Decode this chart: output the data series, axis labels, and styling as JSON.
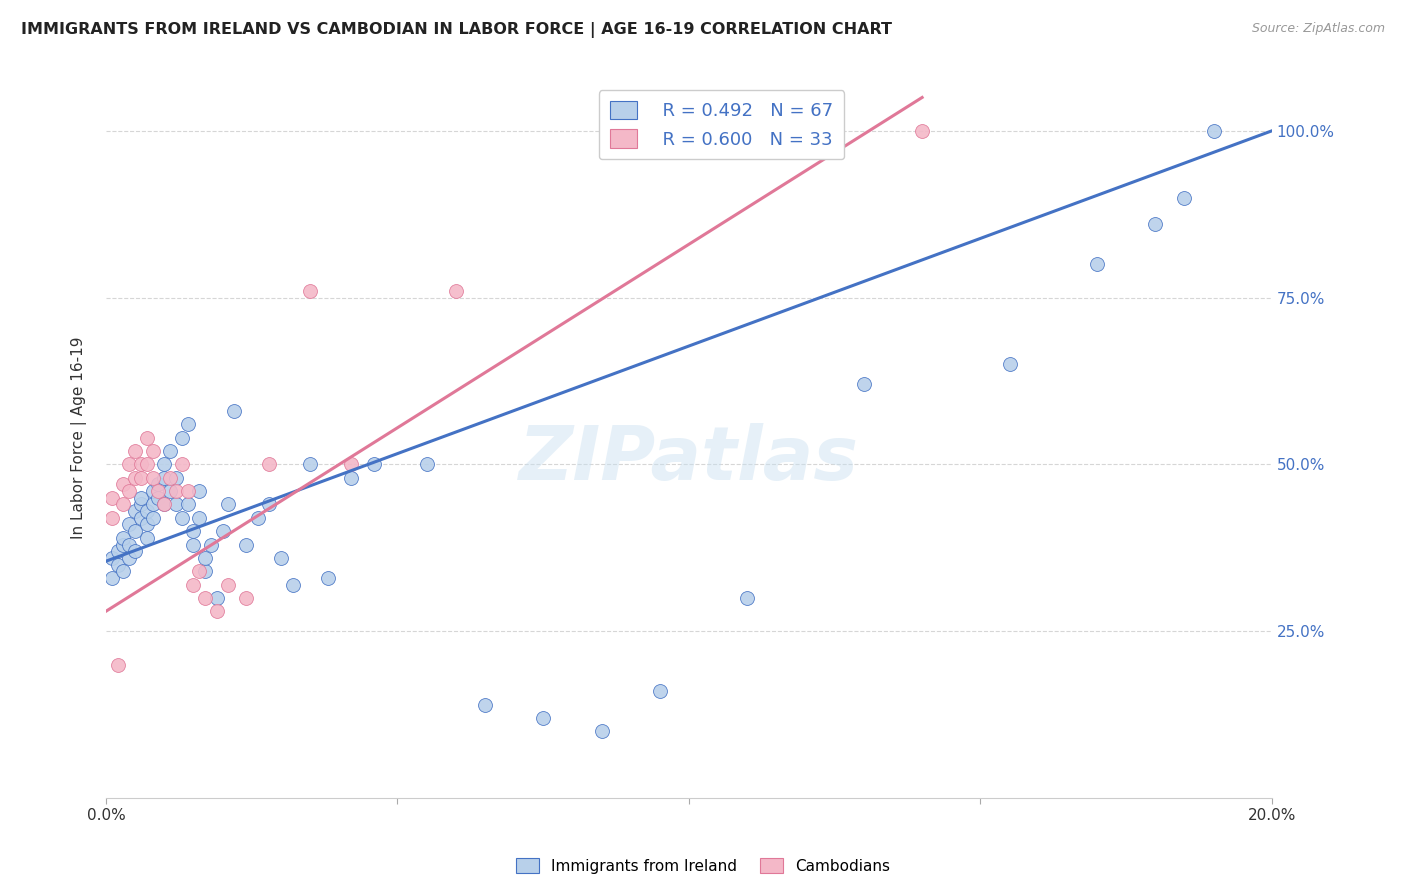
{
  "title": "IMMIGRANTS FROM IRELAND VS CAMBODIAN IN LABOR FORCE | AGE 16-19 CORRELATION CHART",
  "source": "Source: ZipAtlas.com",
  "ylabel": "In Labor Force | Age 16-19",
  "xmin": 0.0,
  "xmax": 0.2,
  "ymin": 0.0,
  "ymax": 1.08,
  "yticks": [
    0.25,
    0.5,
    0.75,
    1.0
  ],
  "ytick_labels": [
    "25.0%",
    "50.0%",
    "75.0%",
    "100.0%"
  ],
  "xticks": [
    0.0,
    0.05,
    0.1,
    0.15,
    0.2
  ],
  "xtick_labels": [
    "0.0%",
    "",
    "",
    "",
    "20.0%"
  ],
  "legend_r_blue": "R = 0.492",
  "legend_n_blue": "N = 67",
  "legend_r_pink": "R = 0.600",
  "legend_n_pink": "N = 33",
  "legend_label_blue": "Immigrants from Ireland",
  "legend_label_pink": "Cambodians",
  "blue_color": "#b8d0ea",
  "blue_line_color": "#4472c4",
  "pink_color": "#f4b8c8",
  "pink_line_color": "#e07898",
  "background_color": "#ffffff",
  "grid_color": "#cccccc",
  "watermark": "ZIPatlas",
  "blue_scatter_x": [
    0.001,
    0.001,
    0.002,
    0.002,
    0.003,
    0.003,
    0.003,
    0.004,
    0.004,
    0.004,
    0.005,
    0.005,
    0.005,
    0.006,
    0.006,
    0.006,
    0.007,
    0.007,
    0.007,
    0.008,
    0.008,
    0.008,
    0.009,
    0.009,
    0.01,
    0.01,
    0.01,
    0.011,
    0.011,
    0.012,
    0.012,
    0.013,
    0.013,
    0.014,
    0.014,
    0.015,
    0.015,
    0.016,
    0.016,
    0.017,
    0.017,
    0.018,
    0.019,
    0.02,
    0.021,
    0.022,
    0.024,
    0.026,
    0.028,
    0.03,
    0.032,
    0.035,
    0.038,
    0.042,
    0.046,
    0.055,
    0.065,
    0.075,
    0.085,
    0.095,
    0.11,
    0.13,
    0.155,
    0.17,
    0.18,
    0.185,
    0.19
  ],
  "blue_scatter_y": [
    0.36,
    0.33,
    0.35,
    0.37,
    0.38,
    0.34,
    0.39,
    0.36,
    0.38,
    0.41,
    0.4,
    0.43,
    0.37,
    0.44,
    0.42,
    0.45,
    0.41,
    0.43,
    0.39,
    0.44,
    0.46,
    0.42,
    0.45,
    0.47,
    0.48,
    0.44,
    0.5,
    0.52,
    0.46,
    0.48,
    0.44,
    0.54,
    0.42,
    0.56,
    0.44,
    0.4,
    0.38,
    0.42,
    0.46,
    0.34,
    0.36,
    0.38,
    0.3,
    0.4,
    0.44,
    0.58,
    0.38,
    0.42,
    0.44,
    0.36,
    0.32,
    0.5,
    0.33,
    0.48,
    0.5,
    0.5,
    0.14,
    0.12,
    0.1,
    0.16,
    0.3,
    0.62,
    0.65,
    0.8,
    0.86,
    0.9,
    1.0
  ],
  "pink_scatter_x": [
    0.001,
    0.001,
    0.002,
    0.003,
    0.003,
    0.004,
    0.004,
    0.005,
    0.005,
    0.006,
    0.006,
    0.007,
    0.007,
    0.008,
    0.008,
    0.009,
    0.01,
    0.011,
    0.012,
    0.013,
    0.014,
    0.015,
    0.016,
    0.017,
    0.019,
    0.021,
    0.024,
    0.028,
    0.035,
    0.042,
    0.06,
    0.1,
    0.14
  ],
  "pink_scatter_y": [
    0.42,
    0.45,
    0.2,
    0.44,
    0.47,
    0.46,
    0.5,
    0.48,
    0.52,
    0.5,
    0.48,
    0.54,
    0.5,
    0.48,
    0.52,
    0.46,
    0.44,
    0.48,
    0.46,
    0.5,
    0.46,
    0.32,
    0.34,
    0.3,
    0.28,
    0.32,
    0.3,
    0.5,
    0.76,
    0.5,
    0.76,
    1.0,
    1.0
  ],
  "blue_line_x0": 0.0,
  "blue_line_y0": 0.355,
  "blue_line_x1": 0.2,
  "blue_line_y1": 1.0,
  "pink_line_x0": 0.0,
  "pink_line_y0": 0.28,
  "pink_line_x1": 0.14,
  "pink_line_y1": 1.05
}
